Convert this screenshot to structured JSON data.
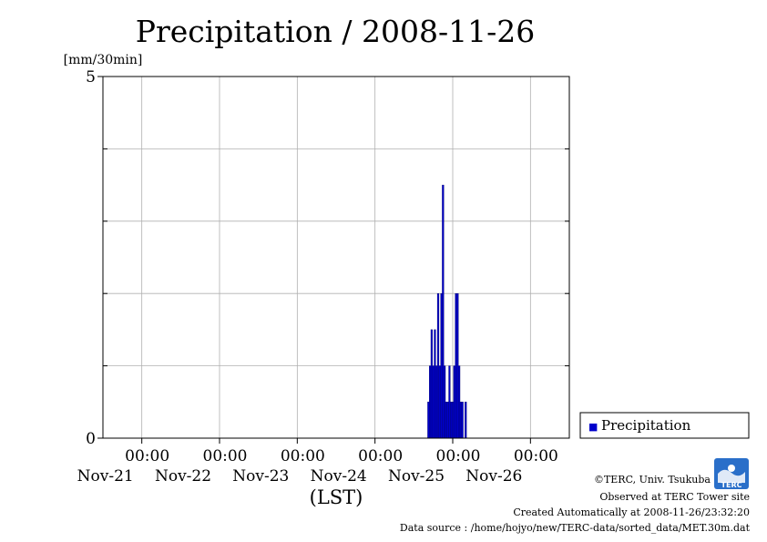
{
  "chart_data": {
    "type": "bar",
    "title": "Precipitation / 2008-11-26",
    "ylabel": "[mm/30min]",
    "xlabel": "(LST)",
    "ylim": [
      0,
      5
    ],
    "y_tick_labels": [
      "0",
      "5"
    ],
    "y_gridlines": [
      1,
      2,
      3,
      4
    ],
    "x_range": [
      "2008-11-20T12:00",
      "2008-11-26T12:00"
    ],
    "x_ticks": [
      {
        "time": "00:00",
        "date": "Nov-21"
      },
      {
        "time": "00:00",
        "date": "Nov-22"
      },
      {
        "time": "00:00",
        "date": "Nov-23"
      },
      {
        "time": "00:00",
        "date": "Nov-24"
      },
      {
        "time": "00:00",
        "date": "Nov-25"
      },
      {
        "time": "00:00",
        "date": "Nov-26"
      }
    ],
    "grid": true,
    "legend_position": "right",
    "series": [
      {
        "name": "Precipitation",
        "color": "#0000cc",
        "x": [
          "2008-11-24T16:30",
          "2008-11-24T17:00",
          "2008-11-24T17:30",
          "2008-11-24T18:00",
          "2008-11-24T18:30",
          "2008-11-24T19:00",
          "2008-11-24T19:30",
          "2008-11-24T20:00",
          "2008-11-24T20:30",
          "2008-11-24T21:00",
          "2008-11-24T21:30",
          "2008-11-24T22:00",
          "2008-11-24T22:30",
          "2008-11-24T23:00",
          "2008-11-24T23:30",
          "2008-11-25T00:00",
          "2008-11-25T00:30",
          "2008-11-25T01:00",
          "2008-11-25T01:30",
          "2008-11-25T02:00",
          "2008-11-25T02:30",
          "2008-11-25T03:00",
          "2008-11-25T03:30",
          "2008-11-25T04:00",
          "2008-11-25T04:30"
        ],
        "values": [
          0.5,
          1.0,
          1.5,
          1.0,
          1.5,
          1.0,
          2.0,
          1.0,
          2.0,
          3.5,
          1.0,
          0.5,
          0.5,
          1.0,
          0.5,
          0.5,
          1.0,
          2.0,
          2.0,
          1.0,
          0.5,
          0.5,
          0,
          0.5,
          0
        ]
      }
    ]
  },
  "legend": {
    "label": "Precipitation",
    "marker": "■"
  },
  "footer": {
    "copyright": "©TERC, Univ. Tsukuba",
    "observed": "Observed at TERC Tower site",
    "created": "Created Automatically at 2008-11-26/23:32:20",
    "source": "Data source : /home/hojyo/new/TERC-data/sorted_data/MET.30m.dat"
  },
  "logo": {
    "text": "TERC",
    "icon": "terc-logo-icon"
  }
}
